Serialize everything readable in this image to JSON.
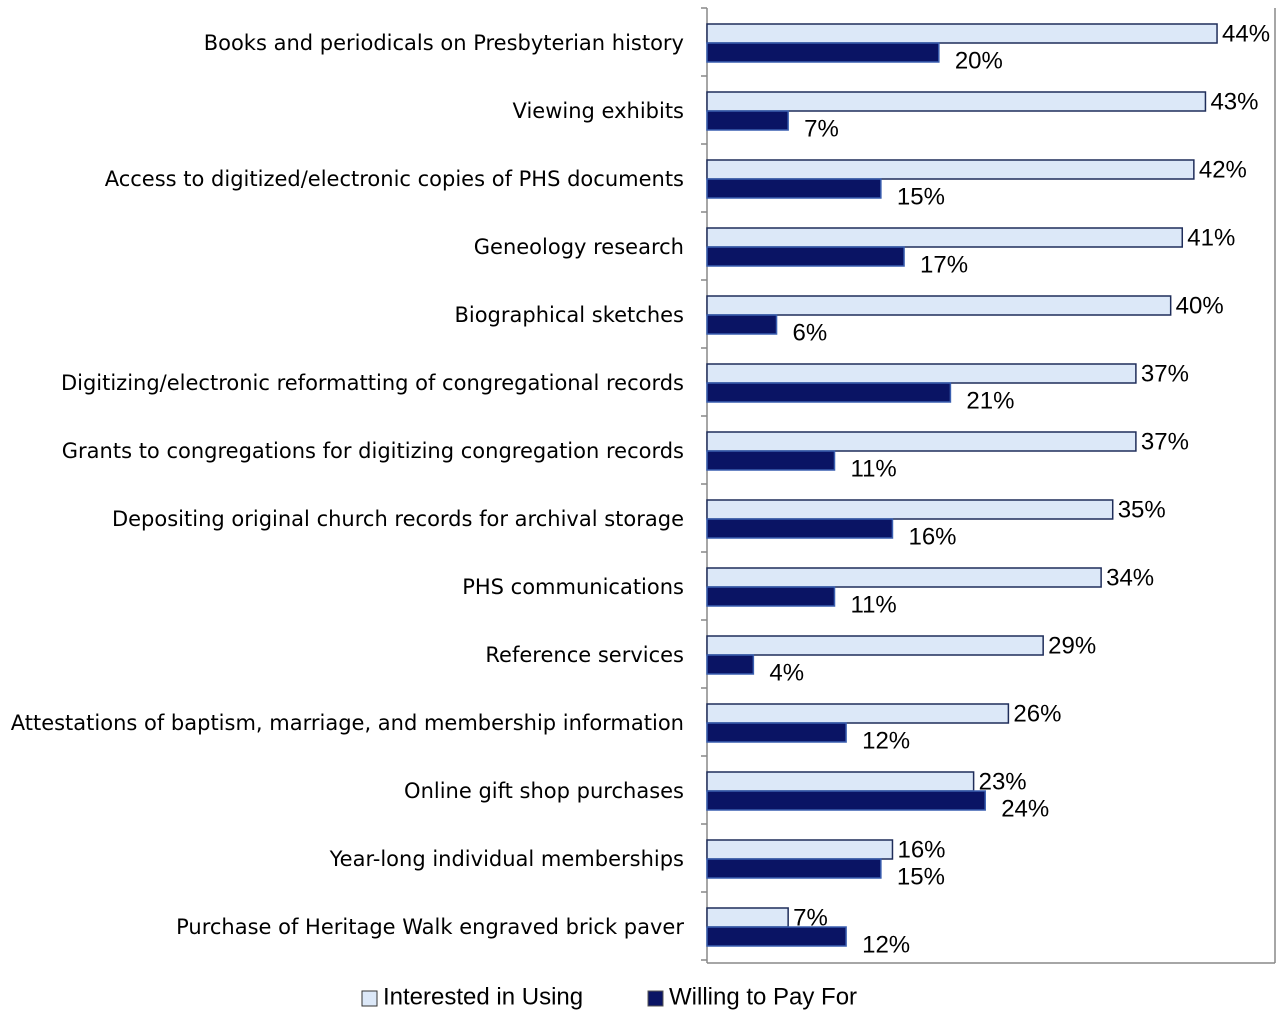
{
  "chart_data": {
    "type": "bar",
    "orientation": "horizontal",
    "categories": [
      "Books and periodicals on Presbyterian history",
      "Viewing exhibits",
      "Access to digitized/electronic copies of PHS documents",
      "Geneology research",
      "Biographical sketches",
      "Digitizing/electronic reformatting of congregational records",
      "Grants to congregations for digitizing congregation records",
      "Depositing original church records for archival storage",
      "PHS communications",
      "Reference services",
      "Attestations of baptism, marriage, and membership information",
      "Online gift shop purchases",
      "Year-long individual memberships",
      "Purchase of Heritage Walk engraved brick paver"
    ],
    "series": [
      {
        "name": "Interested in Using",
        "color": "#dce8f8",
        "values": [
          44,
          43,
          42,
          41,
          40,
          37,
          37,
          35,
          34,
          29,
          26,
          23,
          16,
          7
        ],
        "value_labels": [
          "44%",
          "43%",
          "42%",
          "41%",
          "40%",
          "37%",
          "37%",
          "35%",
          "34%",
          "29%",
          "26%",
          "23%",
          "16%",
          "7%"
        ]
      },
      {
        "name": "Willing to Pay For",
        "color": "#0a1464",
        "values": [
          20,
          7,
          15,
          17,
          6,
          21,
          11,
          16,
          11,
          4,
          12,
          24,
          15,
          12
        ],
        "value_labels": [
          "20%",
          "7%",
          "15%",
          "17%",
          "6%",
          "21%",
          "11%",
          "16%",
          "11%",
          "4%",
          "12%",
          "24%",
          "15%",
          "12%"
        ]
      }
    ],
    "xlim": [
      0,
      49
    ],
    "legend": "bottom"
  }
}
